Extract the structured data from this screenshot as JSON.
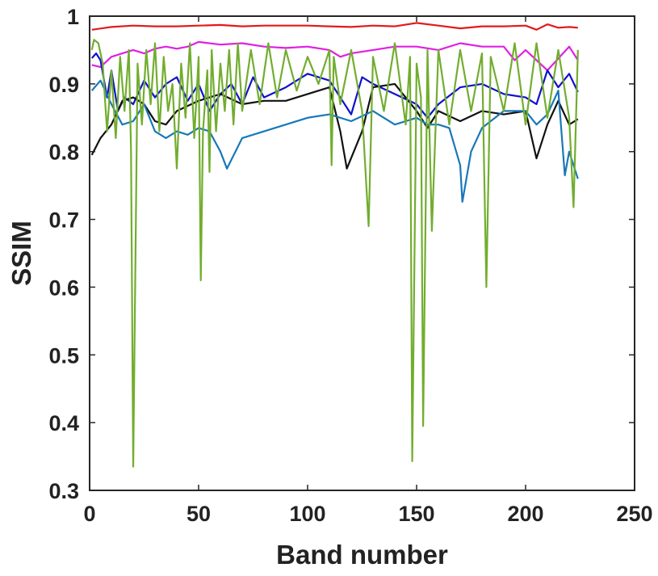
{
  "chart_data": {
    "type": "line",
    "title": "",
    "xlabel": "Band number",
    "ylabel": "SSIM",
    "xlim": [
      0,
      250
    ],
    "ylim": [
      0.3,
      1.0
    ],
    "xticks": [
      "0",
      "50",
      "100",
      "150",
      "200",
      "250"
    ],
    "yticks": [
      "0.3",
      "0.4",
      "0.5",
      "0.6",
      "0.7",
      "0.8",
      "0.9",
      "1"
    ],
    "grid": false,
    "legend": "none",
    "series": [
      {
        "color": "#E31A1C",
        "x": [
          1,
          10,
          20,
          30,
          40,
          50,
          60,
          70,
          80,
          90,
          100,
          110,
          120,
          130,
          140,
          150,
          160,
          170,
          180,
          190,
          200,
          205,
          210,
          215,
          220,
          224
        ],
        "y": [
          0.98,
          0.984,
          0.986,
          0.985,
          0.985,
          0.986,
          0.987,
          0.985,
          0.986,
          0.986,
          0.986,
          0.985,
          0.984,
          0.986,
          0.985,
          0.99,
          0.986,
          0.982,
          0.985,
          0.985,
          0.986,
          0.98,
          0.988,
          0.983,
          0.984,
          0.983
        ]
      },
      {
        "color": "#E020E0",
        "x": [
          1,
          5,
          10,
          15,
          20,
          25,
          30,
          35,
          40,
          45,
          50,
          60,
          70,
          80,
          90,
          100,
          110,
          115,
          120,
          130,
          140,
          150,
          160,
          170,
          180,
          190,
          195,
          200,
          210,
          220,
          224
        ],
        "y": [
          0.928,
          0.925,
          0.94,
          0.945,
          0.95,
          0.945,
          0.952,
          0.955,
          0.952,
          0.955,
          0.962,
          0.958,
          0.96,
          0.955,
          0.953,
          0.955,
          0.95,
          0.94,
          0.945,
          0.95,
          0.955,
          0.955,
          0.95,
          0.96,
          0.955,
          0.955,
          0.935,
          0.95,
          0.92,
          0.955,
          0.935
        ]
      },
      {
        "color": "#1010D0",
        "x": [
          1,
          3,
          5,
          8,
          10,
          13,
          16,
          20,
          25,
          30,
          35,
          40,
          45,
          50,
          55,
          60,
          65,
          70,
          75,
          80,
          90,
          100,
          110,
          115,
          120,
          125,
          130,
          140,
          150,
          155,
          160,
          170,
          180,
          190,
          200,
          205,
          210,
          215,
          220,
          224
        ],
        "y": [
          0.938,
          0.945,
          0.935,
          0.88,
          0.92,
          0.86,
          0.88,
          0.87,
          0.905,
          0.88,
          0.9,
          0.91,
          0.875,
          0.9,
          0.86,
          0.885,
          0.9,
          0.87,
          0.91,
          0.88,
          0.895,
          0.915,
          0.905,
          0.88,
          0.855,
          0.91,
          0.9,
          0.885,
          0.87,
          0.85,
          0.87,
          0.895,
          0.9,
          0.885,
          0.88,
          0.87,
          0.92,
          0.895,
          0.915,
          0.888
        ]
      },
      {
        "color": "#111111",
        "x": [
          1,
          5,
          10,
          15,
          20,
          25,
          30,
          35,
          40,
          50,
          60,
          70,
          80,
          90,
          100,
          110,
          115,
          118,
          125,
          130,
          140,
          150,
          155,
          160,
          170,
          180,
          190,
          200,
          205,
          210,
          215,
          220,
          224
        ],
        "y": [
          0.795,
          0.82,
          0.84,
          0.875,
          0.88,
          0.87,
          0.845,
          0.84,
          0.86,
          0.875,
          0.885,
          0.87,
          0.875,
          0.875,
          0.885,
          0.895,
          0.83,
          0.775,
          0.83,
          0.895,
          0.9,
          0.86,
          0.835,
          0.86,
          0.845,
          0.86,
          0.855,
          0.86,
          0.79,
          0.84,
          0.875,
          0.84,
          0.848
        ]
      },
      {
        "color": "#1878B8",
        "x": [
          1,
          5,
          10,
          15,
          20,
          25,
          30,
          35,
          40,
          45,
          50,
          55,
          60,
          63,
          70,
          80,
          90,
          100,
          110,
          120,
          130,
          140,
          150,
          155,
          160,
          165,
          170,
          171,
          175,
          180,
          190,
          200,
          205,
          210,
          215,
          218,
          220,
          224
        ],
        "y": [
          0.89,
          0.905,
          0.87,
          0.84,
          0.845,
          0.87,
          0.83,
          0.82,
          0.83,
          0.825,
          0.835,
          0.83,
          0.8,
          0.775,
          0.82,
          0.83,
          0.84,
          0.85,
          0.855,
          0.845,
          0.86,
          0.84,
          0.85,
          0.84,
          0.84,
          0.835,
          0.78,
          0.726,
          0.8,
          0.835,
          0.86,
          0.86,
          0.84,
          0.855,
          0.89,
          0.765,
          0.8,
          0.76
        ]
      },
      {
        "color": "#72AD2F",
        "x": [
          1,
          2,
          4,
          6,
          8,
          10,
          12,
          14,
          16,
          18,
          19,
          20,
          22,
          24,
          26,
          28,
          30,
          32,
          34,
          36,
          38,
          40,
          42,
          44,
          46,
          48,
          50,
          51,
          52,
          54,
          55,
          56,
          58,
          60,
          62,
          64,
          66,
          68,
          70,
          74,
          78,
          82,
          86,
          90,
          95,
          100,
          105,
          110,
          111,
          112,
          115,
          120,
          125,
          128,
          130,
          135,
          140,
          145,
          147,
          148,
          150,
          152,
          153,
          155,
          157,
          160,
          165,
          170,
          175,
          180,
          182,
          184,
          190,
          195,
          200,
          205,
          210,
          215,
          220,
          222,
          224
        ],
        "y": [
          0.95,
          0.965,
          0.96,
          0.93,
          0.83,
          0.92,
          0.82,
          0.94,
          0.86,
          0.95,
          0.8,
          0.335,
          0.93,
          0.84,
          0.95,
          0.87,
          0.96,
          0.83,
          0.94,
          0.86,
          0.9,
          0.775,
          0.93,
          0.85,
          0.96,
          0.82,
          0.94,
          0.61,
          0.83,
          0.92,
          0.77,
          0.95,
          0.83,
          0.93,
          0.86,
          0.95,
          0.84,
          0.96,
          0.86,
          0.95,
          0.87,
          0.96,
          0.88,
          0.95,
          0.89,
          0.94,
          0.9,
          0.95,
          0.78,
          0.94,
          0.87,
          0.95,
          0.86,
          0.69,
          0.94,
          0.86,
          0.96,
          0.84,
          0.94,
          0.343,
          0.93,
          0.88,
          0.395,
          0.95,
          0.683,
          0.95,
          0.84,
          0.95,
          0.86,
          0.945,
          0.6,
          0.94,
          0.86,
          0.96,
          0.84,
          0.96,
          0.85,
          0.95,
          0.85,
          0.718,
          0.95
        ]
      }
    ]
  }
}
